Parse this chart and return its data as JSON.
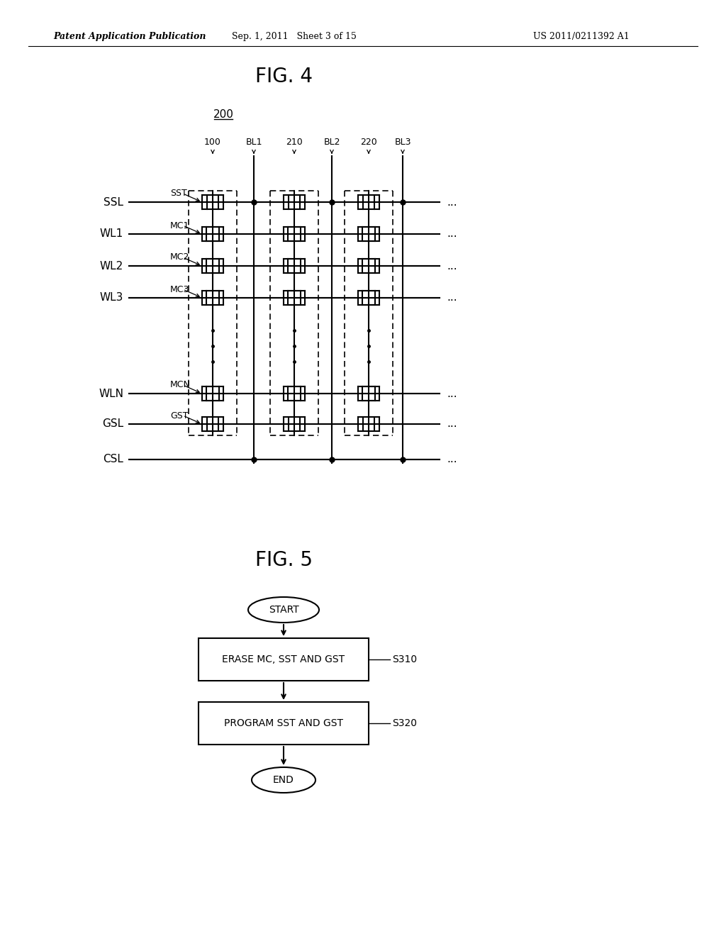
{
  "bg_color": "#ffffff",
  "header_left": "Patent Application Publication",
  "header_mid": "Sep. 1, 2011   Sheet 3 of 15",
  "header_right": "US 2011/0211392 A1",
  "fig4_title": "FIG. 4",
  "fig5_title": "FIG. 5",
  "label_200": "200",
  "line_color": "#000000",
  "text_color": "#000000",
  "font_size_header": 9,
  "font_size_title": 20,
  "font_size_label": 11,
  "font_size_cell": 9,
  "font_size_flow": 10,
  "font_size_col": 9
}
